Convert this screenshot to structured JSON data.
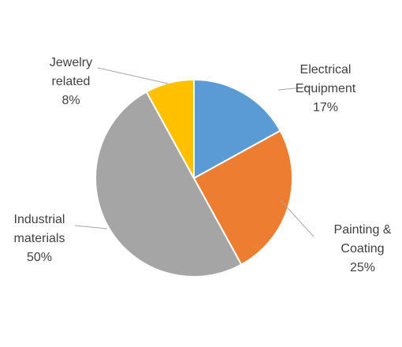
{
  "chart_data": {
    "type": "pie",
    "title": "",
    "start_angle_deg": 0,
    "direction": "clockwise",
    "slices": [
      {
        "label": [
          "Electrical",
          "Equipment"
        ],
        "value": 17,
        "value_label": "17%",
        "color": "#5b9bd5"
      },
      {
        "label": [
          "Painting &",
          "Coating"
        ],
        "value": 25,
        "value_label": "25%",
        "color": "#ed7d31"
      },
      {
        "label": [
          "Industrial",
          "materials"
        ],
        "value": 50,
        "value_label": "50%",
        "color": "#a5a5a5"
      },
      {
        "label": [
          "Jewelry",
          "related"
        ],
        "value": 8,
        "value_label": "8%",
        "color": "#ffc000"
      }
    ],
    "legend": "none",
    "data_labels": "outside with leader lines"
  }
}
